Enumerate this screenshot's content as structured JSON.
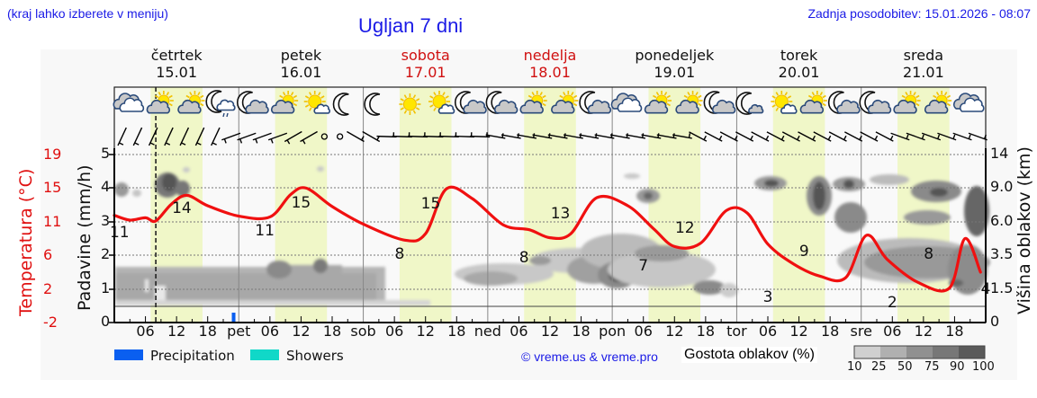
{
  "header": {
    "location_hint": "(kraj lahko izberete v meniju)",
    "title": "Ugljan 7 dni",
    "last_update": "Zadnja posodobitev: 15.01.2026 - 08:07"
  },
  "days": [
    {
      "name": "četrtek",
      "date": "15.01",
      "weekend": false
    },
    {
      "name": "petek",
      "date": "16.01",
      "weekend": false
    },
    {
      "name": "sobota",
      "date": "17.01",
      "weekend": true
    },
    {
      "name": "nedelja",
      "date": "18.01",
      "weekend": true
    },
    {
      "name": "ponedeljek",
      "date": "19.01",
      "weekend": false
    },
    {
      "name": "torek",
      "date": "20.01",
      "weekend": false
    },
    {
      "name": "sreda",
      "date": "21.01",
      "weekend": false
    }
  ],
  "axes": {
    "left_temp_label": "Temperatura (°C)",
    "left_temp_ticks": [
      "19",
      "15",
      "11",
      "6",
      "2",
      "-2"
    ],
    "left_precip_label": "Padavine (mm/h)",
    "left_precip_ticks": [
      "5",
      "4",
      "3",
      "2",
      "1",
      "0"
    ],
    "right_label": "Višina oblakov (km)",
    "right_ticks": [
      "14",
      "9.0",
      "6.0",
      "3.5",
      "1.5",
      "0"
    ],
    "x_ticks": [
      "06",
      "12",
      "18",
      "pet",
      "06",
      "12",
      "18",
      "sob",
      "06",
      "12",
      "18",
      "ned",
      "06",
      "12",
      "18",
      "pon",
      "06",
      "12",
      "18",
      "tor",
      "06",
      "12",
      "18",
      "sre",
      "06",
      "12",
      "18"
    ]
  },
  "legend": {
    "precipitation": "Precipitation",
    "showers": "Showers",
    "precipitation_color": "#0a5ff0",
    "showers_color": "#10d8c8",
    "copyright": "© vreme.us & vreme.pro",
    "cloud_density_label": "Gostota oblakov (%)",
    "cloud_scale": [
      "10",
      "25",
      "50",
      "75",
      "90",
      "100"
    ],
    "cloud_scale_colors": [
      "#d0d0d0",
      "#b0b0b0",
      "#909090",
      "#777777",
      "#5a5a5a"
    ]
  },
  "weather_icons": [
    "cloudy",
    "sun-cloud",
    "sun-cloud",
    "moon-cloud-rain",
    "moon-cloud",
    "sun-cloud",
    "sun-small-cloud",
    "moon",
    "moon",
    "sun",
    "sun-small-cloud",
    "moon-cloud",
    "moon-cloud",
    "sun-cloud",
    "sun-cloud",
    "moon-cloud",
    "cloudy",
    "sun-cloud",
    "sun-cloud",
    "moon-cloud",
    "moon-small-cloud",
    "sun-small-cloud",
    "sun-cloud",
    "moon-cloud",
    "moon-cloud",
    "sun-cloud",
    "sun-cloud",
    "cloudy"
  ],
  "chart_data": {
    "type": "line",
    "title": "Ugljan 7 dni",
    "xlabel": "",
    "ylabel": "Temperatura (°C)",
    "ylim": [
      -2,
      19
    ],
    "series": [
      {
        "name": "Temperatura",
        "color": "#f01010",
        "hours": [
          0,
          3,
          6,
          8,
          11,
          14,
          18,
          24,
          30,
          34,
          37,
          42,
          48,
          56,
          60,
          64,
          69,
          75,
          80,
          84,
          88,
          93,
          99,
          104,
          108,
          113,
          118,
          122,
          126,
          131,
          136,
          141,
          145,
          149,
          155,
          161,
          164,
          167
        ],
        "values": [
          11.4,
          10.8,
          11.1,
          10.7,
          12.8,
          13.9,
          12.6,
          11.3,
          11.2,
          14.0,
          14.8,
          12.5,
          10.3,
          8.3,
          9.1,
          14.7,
          13.5,
          10.2,
          9.6,
          8.6,
          9.1,
          13.6,
          12.6,
          9.7,
          7.5,
          7.9,
          12.0,
          11.7,
          7.8,
          5.3,
          3.8,
          3.6,
          8.9,
          5.9,
          3.0,
          2.3,
          8.5,
          4.3
        ]
      }
    ],
    "temp_labels": [
      {
        "hour": 1,
        "value": "11"
      },
      {
        "hour": 13,
        "value": "14"
      },
      {
        "hour": 29,
        "value": "11"
      },
      {
        "hour": 36,
        "value": "15"
      },
      {
        "hour": 55,
        "value": "8"
      },
      {
        "hour": 61,
        "value": "15"
      },
      {
        "hour": 79,
        "value": "8"
      },
      {
        "hour": 86,
        "value": "13"
      },
      {
        "hour": 102,
        "value": "7"
      },
      {
        "hour": 110,
        "value": "12"
      },
      {
        "hour": 126,
        "value": "3"
      },
      {
        "hour": 133,
        "value": "9"
      },
      {
        "hour": 150,
        "value": "2"
      },
      {
        "hour": 157,
        "value": "8"
      },
      {
        "hour": 168,
        "value": "4"
      }
    ],
    "precipitation": [
      {
        "hour": 23,
        "mm_per_h": 0.1,
        "type": "Precipitation"
      }
    ],
    "current_time_hour": 8,
    "daylight_hours": [
      7,
      17
    ],
    "cloud_layers_note": "Grey cloud-density contours by height (km) over time"
  }
}
